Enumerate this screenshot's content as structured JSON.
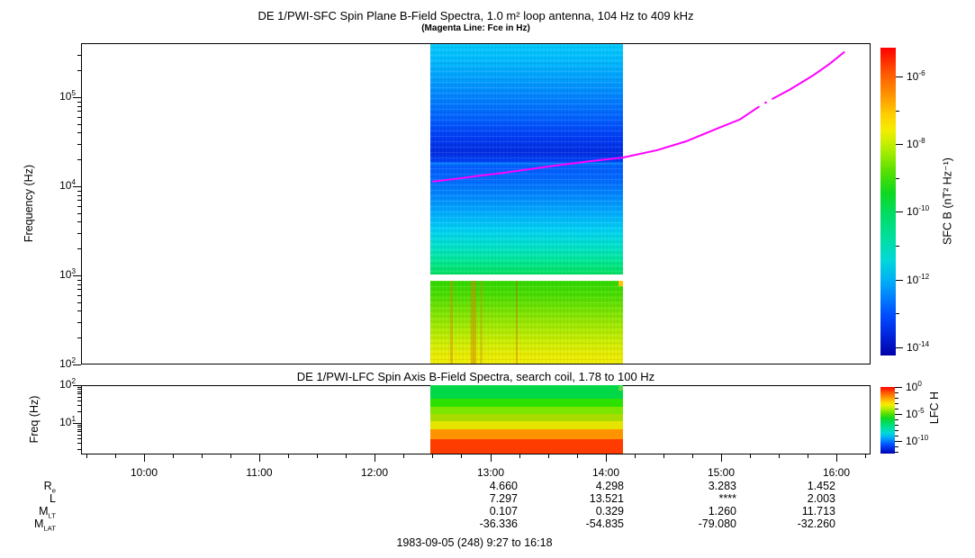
{
  "header": {
    "title": "DE 1/PWI-SFC  Spin Plane B-Field Spectra, 1.0 m² loop antenna, 104 Hz to 409 kHz",
    "subtitle": "(Magenta Line: Fce in Hz)"
  },
  "sfc": {
    "ylabel": "Frequency (Hz)",
    "ytick_exps": [
      2,
      3,
      4,
      5
    ],
    "colorbar_label": "SFC B (nT² Hz⁻¹)",
    "colorbar_tick_exps": [
      -6,
      -8,
      -10,
      -12,
      -14
    ]
  },
  "lfc": {
    "title": "DE 1/PWI-LFC  Spin Axis B-Field Spectra, search coil, 1.78 to 100 Hz",
    "ylabel": "Freq (Hz)",
    "ytick_exps": [
      1,
      2
    ],
    "colorbar_label": "LFC H",
    "colorbar_tick_exps": [
      0,
      -5,
      -10
    ]
  },
  "xaxis": {
    "tick_labels": [
      "10:00",
      "11:00",
      "12:00",
      "13:00",
      "14:00",
      "15:00",
      "16:00"
    ],
    "start_time": "9:27",
    "end_time": "16:18"
  },
  "ephemeris": {
    "row_labels": [
      {
        "main": "R",
        "sub": "e"
      },
      {
        "main": "L",
        "sub": ""
      },
      {
        "main": "M",
        "sub": "LT"
      },
      {
        "main": "M",
        "sub": "LAT"
      }
    ],
    "columns": [
      {
        "values": [
          "4.660",
          "7.297",
          "0.107",
          "-36.336"
        ]
      },
      {
        "values": [
          "4.298",
          "13.521",
          "0.329",
          "-54.835"
        ]
      },
      {
        "values": [
          "3.283",
          "****",
          "1.260",
          "-79.080"
        ]
      },
      {
        "values": [
          "1.452",
          "2.003",
          "11.713",
          "-32.260"
        ]
      }
    ]
  },
  "caption": "1983-09-05 (248) 9:27 to 16:18",
  "chart_data": [
    {
      "type": "heatmap",
      "title": "DE 1/PWI-SFC Spin Plane B-Field Spectra, 1.0 m² loop antenna, 104 Hz to 409 kHz",
      "ylabel": "Frequency (Hz)",
      "y_scale": "log",
      "y_range_hz": [
        104,
        409000
      ],
      "x_range_hours": [
        9.45,
        16.3
      ],
      "data_time_range_hours": [
        12.49,
        14.16
      ],
      "colorbar": {
        "label": "SFC B (nT² Hz⁻¹)",
        "range_exp": [
          -14,
          -6
        ],
        "palette": "rainbow"
      },
      "bands_upper_freq_color": [
        [
          400000,
          "#00ccff"
        ],
        [
          250000,
          "#00b8ff"
        ],
        [
          120000,
          "#008eff"
        ],
        [
          55000,
          "#005cff"
        ],
        [
          36000,
          "#003cf6"
        ],
        [
          24000,
          "#002ce2"
        ],
        [
          19000,
          "#0042f8"
        ],
        [
          18000,
          "#007aff"
        ],
        [
          16500,
          "#005cff"
        ],
        [
          12000,
          "#0068ff"
        ],
        [
          8000,
          "#0086ff"
        ],
        [
          5000,
          "#00acff"
        ],
        [
          3200,
          "#00d2f4"
        ],
        [
          2100,
          "#00e2ca"
        ],
        [
          1500,
          "#00e89a"
        ],
        [
          1150,
          "#00e470"
        ],
        [
          1000,
          "#00e05c"
        ]
      ],
      "upper_band_freq_range": [
        1000,
        400000
      ],
      "bands_lower_freq_color": [
        [
          870,
          "#30d800"
        ],
        [
          600,
          "#4ade00"
        ],
        [
          400,
          "#78e400"
        ],
        [
          250,
          "#aaea00"
        ],
        [
          170,
          "#d2ee00"
        ],
        [
          130,
          "#e8ec00"
        ],
        [
          102,
          "#f0ee00"
        ]
      ],
      "lower_band_freq_range": [
        104,
        870
      ],
      "lower_streaks": [
        {
          "t": 12.65,
          "w": 3,
          "color": "#cc8800",
          "opacity": 0.45
        },
        {
          "t": 12.83,
          "w": 6,
          "color": "#cc8800",
          "opacity": 0.5
        },
        {
          "t": 12.91,
          "w": 3,
          "color": "#bb9900",
          "opacity": 0.35
        },
        {
          "t": 13.22,
          "w": 2,
          "color": "#cc4400",
          "opacity": 0.3
        }
      ],
      "corner_notch_color": "#ffc400",
      "fce_line": {
        "color": "#ff00ff",
        "segments_t_hz": [
          [
            [
              12.505,
              11300
            ],
            [
              12.7,
              12100
            ],
            [
              12.9,
              13100
            ],
            [
              13.1,
              14100
            ],
            [
              13.35,
              15600
            ],
            [
              13.6,
              17300
            ],
            [
              13.85,
              19000
            ],
            [
              14.15,
              21000
            ],
            [
              14.45,
              25500
            ],
            [
              14.7,
              32000
            ],
            [
              14.95,
              43500
            ],
            [
              15.17,
              56500
            ],
            [
              15.33,
              78000
            ]
          ],
          [
            [
              15.45,
              96000
            ],
            [
              15.6,
              122000
            ],
            [
              15.8,
              175000
            ],
            [
              15.95,
              240000
            ],
            [
              16.07,
              320000
            ]
          ]
        ],
        "gap_dot_t_hz": [
          15.39,
          87000
        ]
      }
    },
    {
      "type": "heatmap",
      "title": "DE 1/PWI-LFC Spin Axis B-Field Spectra, search coil, 1.78 to 100 Hz",
      "ylabel": "Freq (Hz)",
      "y_scale": "log",
      "y_range_hz": [
        1.78,
        100
      ],
      "data_time_range_hours": [
        12.49,
        14.16
      ],
      "colorbar": {
        "label": "LFC H",
        "range_exp": [
          -12,
          0
        ],
        "palette": "rainbow"
      },
      "rows_freq_color": [
        [
          98,
          44,
          "#00d848"
        ],
        [
          44,
          26.8,
          "#2ce000"
        ],
        [
          26.8,
          17.3,
          "#7ce600"
        ],
        [
          17.3,
          11.2,
          "#a8dc00"
        ],
        [
          11.2,
          6.8,
          "#e4e400"
        ],
        [
          6.8,
          3.7,
          "#ff9400"
        ],
        [
          3.7,
          1.55,
          "#ff3c00"
        ]
      ],
      "corner_notch_color": "#66d848"
    }
  ],
  "palette_rainbow_stops": [
    [
      0.0,
      "#ff0000"
    ],
    [
      0.08,
      "#ff5500"
    ],
    [
      0.16,
      "#ff9900"
    ],
    [
      0.22,
      "#ffd000"
    ],
    [
      0.27,
      "#f2ee00"
    ],
    [
      0.33,
      "#b0ee00"
    ],
    [
      0.4,
      "#58e000"
    ],
    [
      0.47,
      "#10d81e"
    ],
    [
      0.54,
      "#00dc64"
    ],
    [
      0.62,
      "#00dfa0"
    ],
    [
      0.69,
      "#00d8d8"
    ],
    [
      0.75,
      "#00b4f4"
    ],
    [
      0.81,
      "#0080ff"
    ],
    [
      0.87,
      "#004cff"
    ],
    [
      0.93,
      "#0028e0"
    ],
    [
      1.0,
      "#0000a8"
    ]
  ]
}
